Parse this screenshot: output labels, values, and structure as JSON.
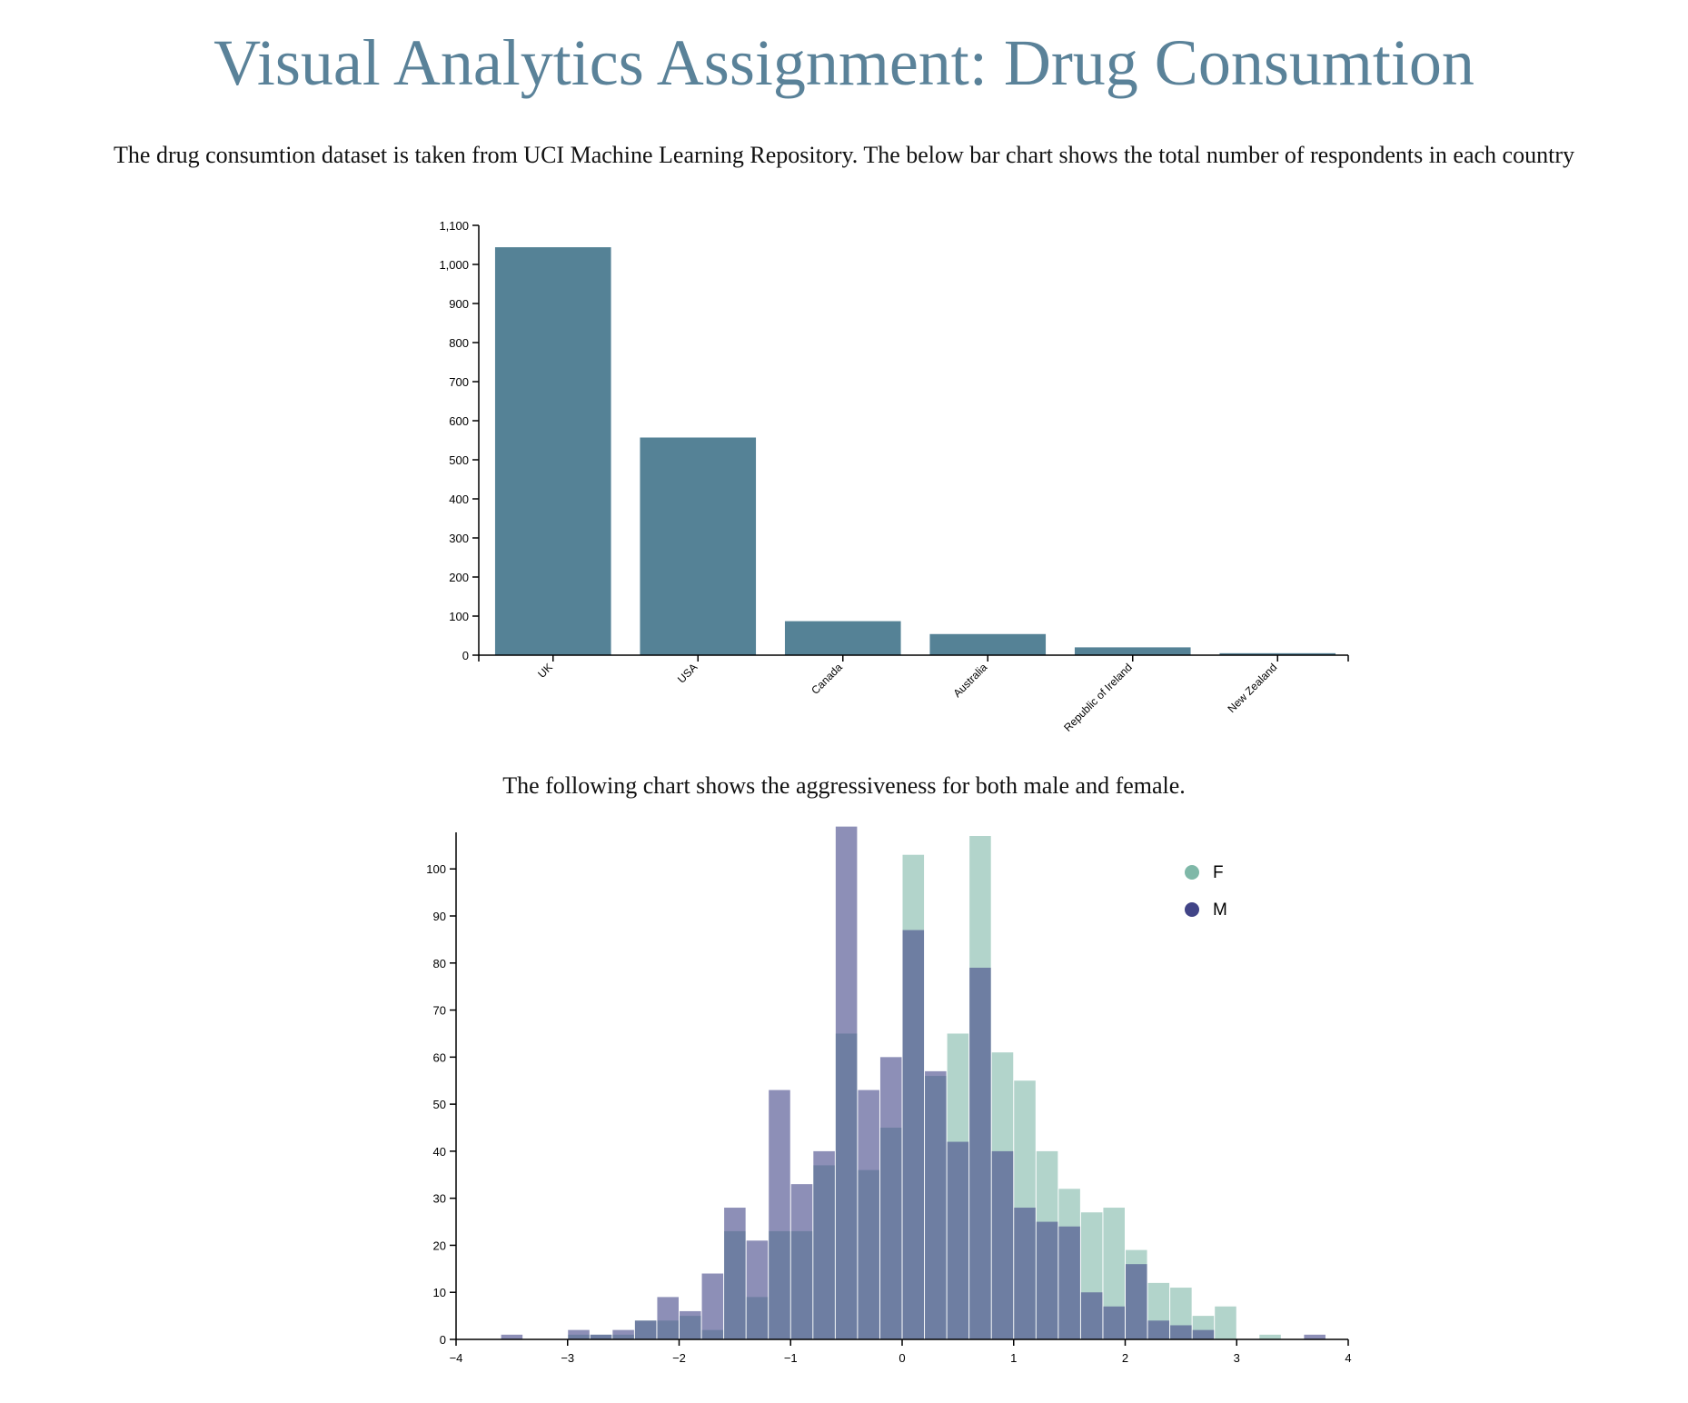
{
  "title": "Visual Analytics Assignment: Drug Consumtion",
  "intro_text": "The drug consumtion dataset is taken from UCI Machine Learning Repository. The below bar chart shows the total number of respondents in each country",
  "second_text": "The following chart shows the aggressiveness for both male and female.",
  "colors": {
    "title": "#5a8299",
    "bar": "#558296",
    "female": "#7fb8a8",
    "male": "#414487"
  },
  "chart_data": [
    {
      "type": "bar",
      "categories": [
        "UK",
        "USA",
        "Canada",
        "Australia",
        "Republic of Ireland",
        "New Zealand"
      ],
      "values": [
        1044,
        557,
        87,
        54,
        20,
        5
      ],
      "ylim": [
        0,
        1100
      ],
      "yticks": [
        0,
        100,
        200,
        300,
        400,
        500,
        600,
        700,
        800,
        900,
        1000,
        1100
      ],
      "ytick_labels": [
        "0",
        "100",
        "200",
        "300",
        "400",
        "500",
        "600",
        "700",
        "800",
        "900",
        "1,000",
        "1,100"
      ]
    },
    {
      "type": "histogram",
      "bin_width": 0.2,
      "xlim": [
        -4,
        4
      ],
      "ylim": [
        0,
        107
      ],
      "xticks": [
        -4,
        -3,
        -2,
        -1,
        0,
        1,
        2,
        3,
        4
      ],
      "xtick_labels": [
        "−4",
        "−3",
        "−2",
        "−1",
        "0",
        "1",
        "2",
        "3",
        "4"
      ],
      "yticks": [
        0,
        10,
        20,
        30,
        40,
        50,
        60,
        70,
        80,
        90,
        100
      ],
      "legend": [
        "F",
        "M"
      ],
      "legend_position": "top-right",
      "series": [
        {
          "name": "F",
          "bins": [
            {
              "x0": -3.6,
              "y": 0
            },
            {
              "x0": -3.0,
              "y": 1
            },
            {
              "x0": -2.8,
              "y": 1
            },
            {
              "x0": -2.6,
              "y": 1
            },
            {
              "x0": -2.4,
              "y": 4
            },
            {
              "x0": -2.2,
              "y": 4
            },
            {
              "x0": -2.0,
              "y": 5
            },
            {
              "x0": -1.8,
              "y": 2
            },
            {
              "x0": -1.6,
              "y": 23
            },
            {
              "x0": -1.4,
              "y": 9
            },
            {
              "x0": -1.2,
              "y": 23
            },
            {
              "x0": -1.0,
              "y": 23
            },
            {
              "x0": -0.8,
              "y": 37
            },
            {
              "x0": -0.6,
              "y": 65
            },
            {
              "x0": -0.4,
              "y": 36
            },
            {
              "x0": -0.2,
              "y": 45
            },
            {
              "x0": 0.0,
              "y": 103
            },
            {
              "x0": 0.2,
              "y": 56
            },
            {
              "x0": 0.4,
              "y": 65
            },
            {
              "x0": 0.6,
              "y": 107
            },
            {
              "x0": 0.8,
              "y": 61
            },
            {
              "x0": 1.0,
              "y": 55
            },
            {
              "x0": 1.2,
              "y": 40
            },
            {
              "x0": 1.4,
              "y": 32
            },
            {
              "x0": 1.6,
              "y": 27
            },
            {
              "x0": 1.8,
              "y": 28
            },
            {
              "x0": 2.0,
              "y": 19
            },
            {
              "x0": 2.2,
              "y": 12
            },
            {
              "x0": 2.4,
              "y": 11
            },
            {
              "x0": 2.6,
              "y": 5
            },
            {
              "x0": 2.8,
              "y": 7
            },
            {
              "x0": 3.2,
              "y": 1
            }
          ]
        },
        {
          "name": "M",
          "bins": [
            {
              "x0": -3.6,
              "y": 1
            },
            {
              "x0": -3.0,
              "y": 2
            },
            {
              "x0": -2.8,
              "y": 1
            },
            {
              "x0": -2.6,
              "y": 2
            },
            {
              "x0": -2.4,
              "y": 4
            },
            {
              "x0": -2.2,
              "y": 9
            },
            {
              "x0": -2.0,
              "y": 6
            },
            {
              "x0": -1.8,
              "y": 14
            },
            {
              "x0": -1.6,
              "y": 28
            },
            {
              "x0": -1.4,
              "y": 21
            },
            {
              "x0": -1.2,
              "y": 53
            },
            {
              "x0": -1.0,
              "y": 33
            },
            {
              "x0": -0.8,
              "y": 40
            },
            {
              "x0": -0.6,
              "y": 109
            },
            {
              "x0": -0.4,
              "y": 53
            },
            {
              "x0": -0.2,
              "y": 60
            },
            {
              "x0": 0.0,
              "y": 87
            },
            {
              "x0": 0.2,
              "y": 57
            },
            {
              "x0": 0.4,
              "y": 42
            },
            {
              "x0": 0.6,
              "y": 79
            },
            {
              "x0": 0.8,
              "y": 40
            },
            {
              "x0": 1.0,
              "y": 28
            },
            {
              "x0": 1.2,
              "y": 25
            },
            {
              "x0": 1.4,
              "y": 24
            },
            {
              "x0": 1.6,
              "y": 10
            },
            {
              "x0": 1.8,
              "y": 7
            },
            {
              "x0": 2.0,
              "y": 16
            },
            {
              "x0": 2.2,
              "y": 4
            },
            {
              "x0": 2.4,
              "y": 3
            },
            {
              "x0": 2.6,
              "y": 2
            },
            {
              "x0": 3.6,
              "y": 1
            }
          ]
        }
      ]
    }
  ]
}
